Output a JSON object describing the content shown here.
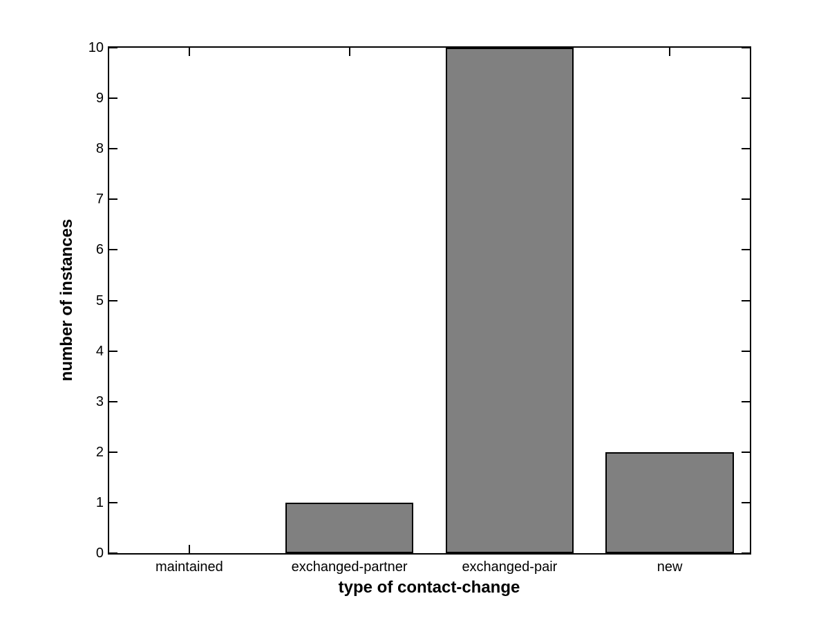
{
  "chart_data": {
    "type": "bar",
    "categories": [
      "maintained",
      "exchanged-partner",
      "exchanged-pair",
      "new"
    ],
    "values": [
      0,
      1,
      10,
      2
    ],
    "title": "",
    "xlabel": "type of contact-change",
    "ylabel": "number of instances",
    "ylim": [
      0,
      10
    ],
    "yticks": [
      0,
      1,
      2,
      3,
      4,
      5,
      6,
      7,
      8,
      9,
      10
    ],
    "bar_width_fraction": 0.8,
    "grid": false,
    "legend": "none",
    "colors": {
      "bar_fill": "#808080",
      "bar_edge": "#000000",
      "axis": "#000000",
      "text": "#000000",
      "background": "#ffffff"
    }
  }
}
